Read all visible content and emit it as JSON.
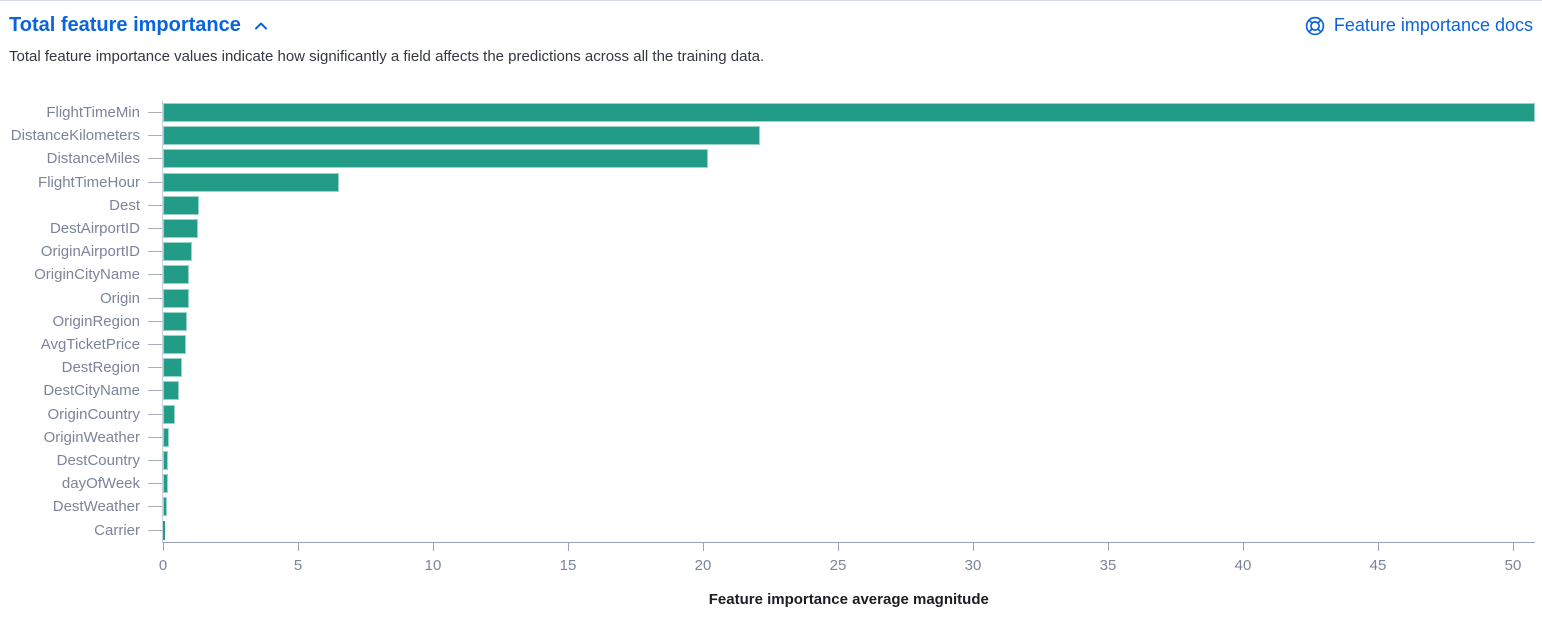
{
  "colors": {
    "accent_blue": "#0b64dd",
    "bar": "#229b87",
    "axis_line": "#9aa3b5",
    "tick_text": "#7b849b"
  },
  "header": {
    "title": "Total feature importance",
    "collapse_icon": "chevron-up-icon",
    "docs_icon": "documentation-icon",
    "docs_link_label": "Feature importance docs"
  },
  "description": "Total feature importance values indicate how significantly a field affects the predictions across all the training data.",
  "chart_data": {
    "type": "bar",
    "orientation": "horizontal",
    "title": "Total feature importance",
    "xlabel": "Feature importance average magnitude",
    "ylabel": "",
    "categories": [
      "FlightTimeMin",
      "DistanceKilometers",
      "DistanceMiles",
      "FlightTimeHour",
      "Dest",
      "DestAirportID",
      "OriginAirportID",
      "OriginCityName",
      "Origin",
      "OriginRegion",
      "AvgTicketPrice",
      "DestRegion",
      "DestCityName",
      "OriginCountry",
      "OriginWeather",
      "DestCountry",
      "dayOfWeek",
      "DestWeather",
      "Carrier"
    ],
    "values": [
      50.8,
      22.1,
      20.2,
      6.5,
      1.33,
      1.3,
      1.07,
      0.96,
      0.96,
      0.89,
      0.85,
      0.72,
      0.59,
      0.43,
      0.22,
      0.19,
      0.17,
      0.15,
      0.06
    ],
    "x_ticks": [
      0,
      5,
      10,
      15,
      20,
      25,
      30,
      35,
      40,
      45,
      50
    ],
    "xlim": [
      0,
      50.8
    ],
    "grid": false,
    "legend": false,
    "bar_color": "#229b87"
  }
}
